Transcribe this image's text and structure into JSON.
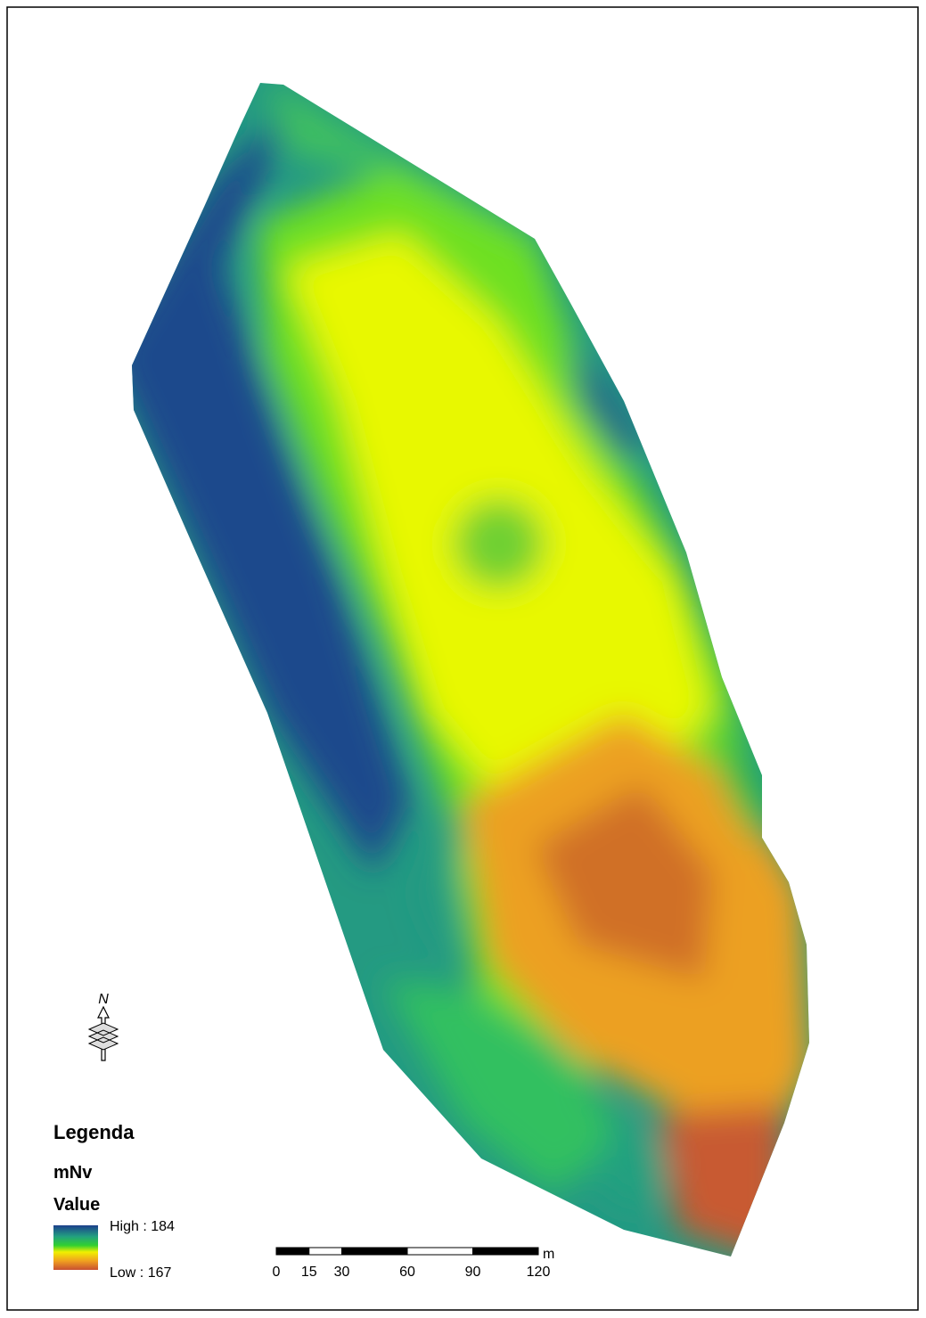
{
  "north_arrow": {
    "label": "N"
  },
  "legend": {
    "title": "Legenda",
    "layer": "mNv",
    "field": "Value",
    "high": "High : 184",
    "low": "Low : 167"
  },
  "scale_bar": {
    "ticks": [
      0,
      15,
      30,
      60,
      90,
      120
    ],
    "unit": "m"
  }
}
